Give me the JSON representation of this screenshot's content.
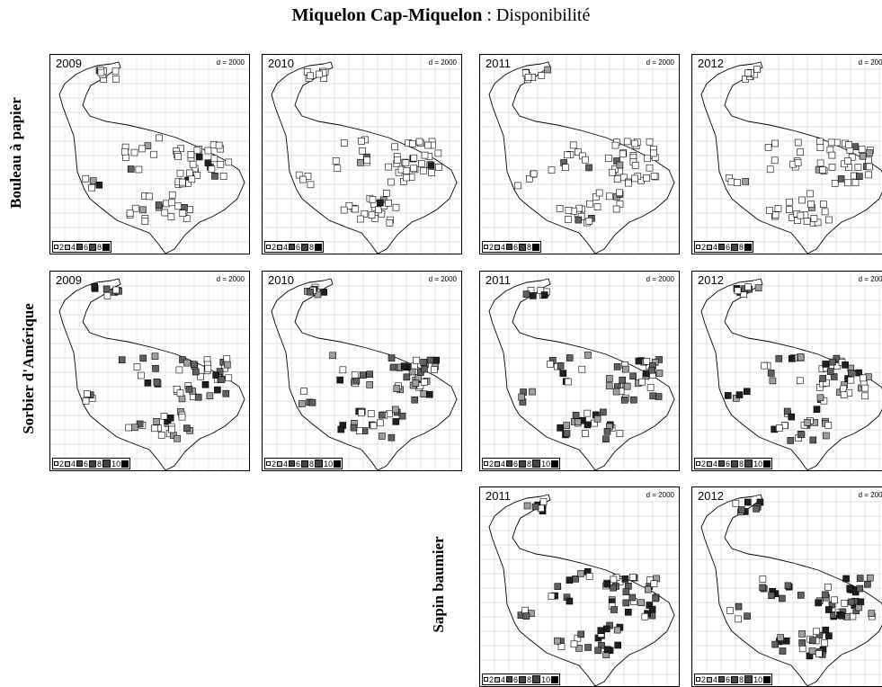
{
  "title": {
    "place": "Miquelon Cap-Miquelon",
    "sep": " : ",
    "metric": "Disponibilité"
  },
  "rows": [
    {
      "label": "Bouleau à papier"
    },
    {
      "label": "Sorbier d'Amérique"
    },
    {
      "label": "Sapin baumier"
    }
  ],
  "d_label": "d = 2000",
  "legend_a": [
    "2",
    "4",
    "6",
    "8"
  ],
  "legend_b": [
    "2",
    "4",
    "6",
    "8",
    "10"
  ],
  "panels": [
    {
      "year": "2009",
      "row": 0,
      "legend": "a"
    },
    {
      "year": "2010",
      "row": 0,
      "legend": "a"
    },
    {
      "year": "2011",
      "row": 0,
      "legend": "a"
    },
    {
      "year": "2012",
      "row": 0,
      "legend": "a"
    },
    {
      "year": "2009",
      "row": 1,
      "legend": "b"
    },
    {
      "year": "2010",
      "row": 1,
      "legend": "b"
    },
    {
      "year": "2011",
      "row": 1,
      "legend": "b"
    },
    {
      "year": "2012",
      "row": 1,
      "legend": "b"
    },
    {
      "year": "2011",
      "row": 2,
      "legend": "b"
    },
    {
      "year": "2012",
      "row": 2,
      "legend": "b"
    }
  ],
  "colors": {
    "empty": "#ffffff",
    "light": "#a0a0a0",
    "mid": "#606060",
    "dark": "#202020",
    "grid": "#d8d8d8"
  }
}
